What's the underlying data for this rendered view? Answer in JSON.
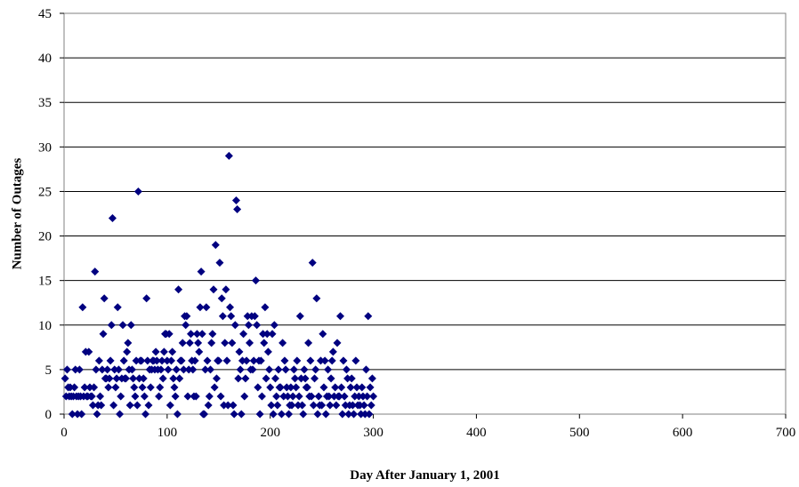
{
  "chart_data": {
    "type": "scatter",
    "title": "",
    "xlabel": "Day After January 1, 2001",
    "ylabel": "Number of Outages",
    "xlim": [
      0,
      700
    ],
    "ylim": [
      0,
      45
    ],
    "xticks": [
      0,
      100,
      200,
      300,
      400,
      500,
      600,
      700
    ],
    "yticks": [
      0,
      5,
      10,
      15,
      20,
      25,
      30,
      35,
      40,
      45
    ],
    "grid": "horizontal",
    "legend": "none",
    "marker": "diamond",
    "marker_color": "#000080",
    "series": [
      {
        "points": [
          [
            1,
            4
          ],
          [
            2,
            2
          ],
          [
            3,
            5
          ],
          [
            4,
            3
          ],
          [
            5,
            2
          ],
          [
            6,
            3
          ],
          [
            7,
            2
          ],
          [
            8,
            0
          ],
          [
            9,
            2
          ],
          [
            10,
            3
          ],
          [
            11,
            5
          ],
          [
            12,
            2
          ],
          [
            13,
            0
          ],
          [
            14,
            2
          ],
          [
            15,
            5
          ],
          [
            16,
            2
          ],
          [
            17,
            0
          ],
          [
            18,
            12
          ],
          [
            19,
            2
          ],
          [
            20,
            3
          ],
          [
            21,
            7
          ],
          [
            22,
            2
          ],
          [
            23,
            2
          ],
          [
            24,
            7
          ],
          [
            25,
            3
          ],
          [
            26,
            2
          ],
          [
            27,
            2
          ],
          [
            28,
            1
          ],
          [
            29,
            3
          ],
          [
            30,
            16
          ],
          [
            31,
            5
          ],
          [
            32,
            0
          ],
          [
            33,
            1
          ],
          [
            34,
            6
          ],
          [
            35,
            2
          ],
          [
            36,
            1
          ],
          [
            37,
            5
          ],
          [
            38,
            9
          ],
          [
            39,
            13
          ],
          [
            40,
            4
          ],
          [
            41,
            4
          ],
          [
            42,
            5
          ],
          [
            43,
            3
          ],
          [
            44,
            4
          ],
          [
            45,
            6
          ],
          [
            46,
            10
          ],
          [
            47,
            22
          ],
          [
            48,
            1
          ],
          [
            49,
            5
          ],
          [
            50,
            3
          ],
          [
            51,
            4
          ],
          [
            52,
            12
          ],
          [
            53,
            5
          ],
          [
            54,
            0
          ],
          [
            55,
            2
          ],
          [
            56,
            4
          ],
          [
            57,
            10
          ],
          [
            58,
            6
          ],
          [
            59,
            4
          ],
          [
            60,
            4
          ],
          [
            61,
            7
          ],
          [
            62,
            8
          ],
          [
            63,
            5
          ],
          [
            64,
            1
          ],
          [
            65,
            10
          ],
          [
            66,
            5
          ],
          [
            67,
            4
          ],
          [
            68,
            3
          ],
          [
            69,
            2
          ],
          [
            70,
            6
          ],
          [
            71,
            1
          ],
          [
            72,
            25
          ],
          [
            73,
            4
          ],
          [
            74,
            6
          ],
          [
            75,
            6
          ],
          [
            76,
            3
          ],
          [
            77,
            4
          ],
          [
            78,
            2
          ],
          [
            79,
            0
          ],
          [
            80,
            13
          ],
          [
            81,
            6
          ],
          [
            82,
            1
          ],
          [
            83,
            5
          ],
          [
            84,
            3
          ],
          [
            85,
            5
          ],
          [
            86,
            6
          ],
          [
            87,
            6
          ],
          [
            88,
            5
          ],
          [
            89,
            7
          ],
          [
            90,
            6
          ],
          [
            91,
            5
          ],
          [
            92,
            2
          ],
          [
            93,
            3
          ],
          [
            94,
            5
          ],
          [
            95,
            6
          ],
          [
            96,
            4
          ],
          [
            97,
            7
          ],
          [
            98,
            9
          ],
          [
            99,
            9
          ],
          [
            100,
            6
          ],
          [
            101,
            5
          ],
          [
            102,
            9
          ],
          [
            103,
            1
          ],
          [
            104,
            6
          ],
          [
            105,
            7
          ],
          [
            106,
            4
          ],
          [
            107,
            3
          ],
          [
            108,
            2
          ],
          [
            109,
            5
          ],
          [
            110,
            0
          ],
          [
            111,
            14
          ],
          [
            112,
            4
          ],
          [
            113,
            6
          ],
          [
            114,
            6
          ],
          [
            115,
            8
          ],
          [
            116,
            5
          ],
          [
            117,
            11
          ],
          [
            118,
            10
          ],
          [
            119,
            11
          ],
          [
            120,
            2
          ],
          [
            121,
            5
          ],
          [
            122,
            8
          ],
          [
            123,
            9
          ],
          [
            124,
            6
          ],
          [
            125,
            5
          ],
          [
            126,
            2
          ],
          [
            127,
            6
          ],
          [
            128,
            2
          ],
          [
            129,
            9
          ],
          [
            130,
            8
          ],
          [
            131,
            7
          ],
          [
            132,
            12
          ],
          [
            133,
            16
          ],
          [
            134,
            9
          ],
          [
            135,
            0
          ],
          [
            136,
            0
          ],
          [
            137,
            5
          ],
          [
            138,
            12
          ],
          [
            139,
            6
          ],
          [
            140,
            1
          ],
          [
            141,
            2
          ],
          [
            142,
            5
          ],
          [
            143,
            8
          ],
          [
            144,
            9
          ],
          [
            145,
            14
          ],
          [
            146,
            3
          ],
          [
            147,
            19
          ],
          [
            148,
            4
          ],
          [
            149,
            6
          ],
          [
            150,
            6
          ],
          [
            151,
            17
          ],
          [
            152,
            2
          ],
          [
            153,
            13
          ],
          [
            154,
            11
          ],
          [
            155,
            1
          ],
          [
            156,
            8
          ],
          [
            157,
            14
          ],
          [
            158,
            6
          ],
          [
            159,
            1
          ],
          [
            160,
            29
          ],
          [
            161,
            12
          ],
          [
            162,
            11
          ],
          [
            163,
            8
          ],
          [
            164,
            1
          ],
          [
            165,
            0
          ],
          [
            166,
            10
          ],
          [
            167,
            24
          ],
          [
            168,
            23
          ],
          [
            169,
            4
          ],
          [
            170,
            7
          ],
          [
            171,
            5
          ],
          [
            172,
            0
          ],
          [
            173,
            6
          ],
          [
            174,
            9
          ],
          [
            175,
            2
          ],
          [
            176,
            4
          ],
          [
            177,
            6
          ],
          [
            178,
            11
          ],
          [
            179,
            10
          ],
          [
            180,
            8
          ],
          [
            181,
            5
          ],
          [
            182,
            11
          ],
          [
            183,
            5
          ],
          [
            184,
            6
          ],
          [
            185,
            11
          ],
          [
            186,
            15
          ],
          [
            187,
            10
          ],
          [
            188,
            3
          ],
          [
            189,
            6
          ],
          [
            190,
            0
          ],
          [
            191,
            6
          ],
          [
            192,
            2
          ],
          [
            193,
            9
          ],
          [
            194,
            8
          ],
          [
            195,
            12
          ],
          [
            196,
            4
          ],
          [
            197,
            9
          ],
          [
            198,
            7
          ],
          [
            199,
            5
          ],
          [
            200,
            3
          ],
          [
            201,
            1
          ],
          [
            202,
            9
          ],
          [
            203,
            0
          ],
          [
            204,
            10
          ],
          [
            205,
            4
          ],
          [
            206,
            2
          ],
          [
            207,
            1
          ],
          [
            208,
            5
          ],
          [
            209,
            3
          ],
          [
            210,
            3
          ],
          [
            211,
            0
          ],
          [
            212,
            8
          ],
          [
            213,
            2
          ],
          [
            214,
            6
          ],
          [
            215,
            5
          ],
          [
            216,
            3
          ],
          [
            217,
            2
          ],
          [
            218,
            0
          ],
          [
            219,
            1
          ],
          [
            220,
            3
          ],
          [
            221,
            1
          ],
          [
            222,
            2
          ],
          [
            223,
            5
          ],
          [
            224,
            4
          ],
          [
            225,
            3
          ],
          [
            226,
            6
          ],
          [
            227,
            1
          ],
          [
            228,
            2
          ],
          [
            229,
            11
          ],
          [
            230,
            4
          ],
          [
            231,
            1
          ],
          [
            232,
            0
          ],
          [
            233,
            5
          ],
          [
            234,
            4
          ],
          [
            235,
            3
          ],
          [
            236,
            3
          ],
          [
            237,
            8
          ],
          [
            238,
            2
          ],
          [
            239,
            6
          ],
          [
            240,
            2
          ],
          [
            241,
            17
          ],
          [
            242,
            1
          ],
          [
            243,
            4
          ],
          [
            244,
            5
          ],
          [
            245,
            13
          ],
          [
            246,
            0
          ],
          [
            247,
            2
          ],
          [
            248,
            1
          ],
          [
            249,
            6
          ],
          [
            250,
            1
          ],
          [
            251,
            9
          ],
          [
            252,
            3
          ],
          [
            253,
            6
          ],
          [
            254,
            0
          ],
          [
            255,
            2
          ],
          [
            256,
            5
          ],
          [
            257,
            2
          ],
          [
            258,
            1
          ],
          [
            259,
            4
          ],
          [
            260,
            6
          ],
          [
            261,
            7
          ],
          [
            262,
            2
          ],
          [
            263,
            3
          ],
          [
            264,
            1
          ],
          [
            265,
            8
          ],
          [
            266,
            2
          ],
          [
            267,
            2
          ],
          [
            268,
            11
          ],
          [
            269,
            3
          ],
          [
            270,
            0
          ],
          [
            271,
            6
          ],
          [
            272,
            2
          ],
          [
            273,
            1
          ],
          [
            274,
            5
          ],
          [
            275,
            4
          ],
          [
            276,
            0
          ],
          [
            277,
            1
          ],
          [
            278,
            3
          ],
          [
            279,
            4
          ],
          [
            280,
            1
          ],
          [
            281,
            0
          ],
          [
            282,
            2
          ],
          [
            283,
            6
          ],
          [
            284,
            3
          ],
          [
            285,
            1
          ],
          [
            286,
            2
          ],
          [
            287,
            1
          ],
          [
            288,
            0
          ],
          [
            289,
            3
          ],
          [
            290,
            2
          ],
          [
            291,
            1
          ],
          [
            292,
            0
          ],
          [
            293,
            5
          ],
          [
            294,
            2
          ],
          [
            295,
            11
          ],
          [
            296,
            0
          ],
          [
            297,
            3
          ],
          [
            298,
            1
          ],
          [
            299,
            4
          ],
          [
            300,
            2
          ]
        ]
      }
    ]
  }
}
